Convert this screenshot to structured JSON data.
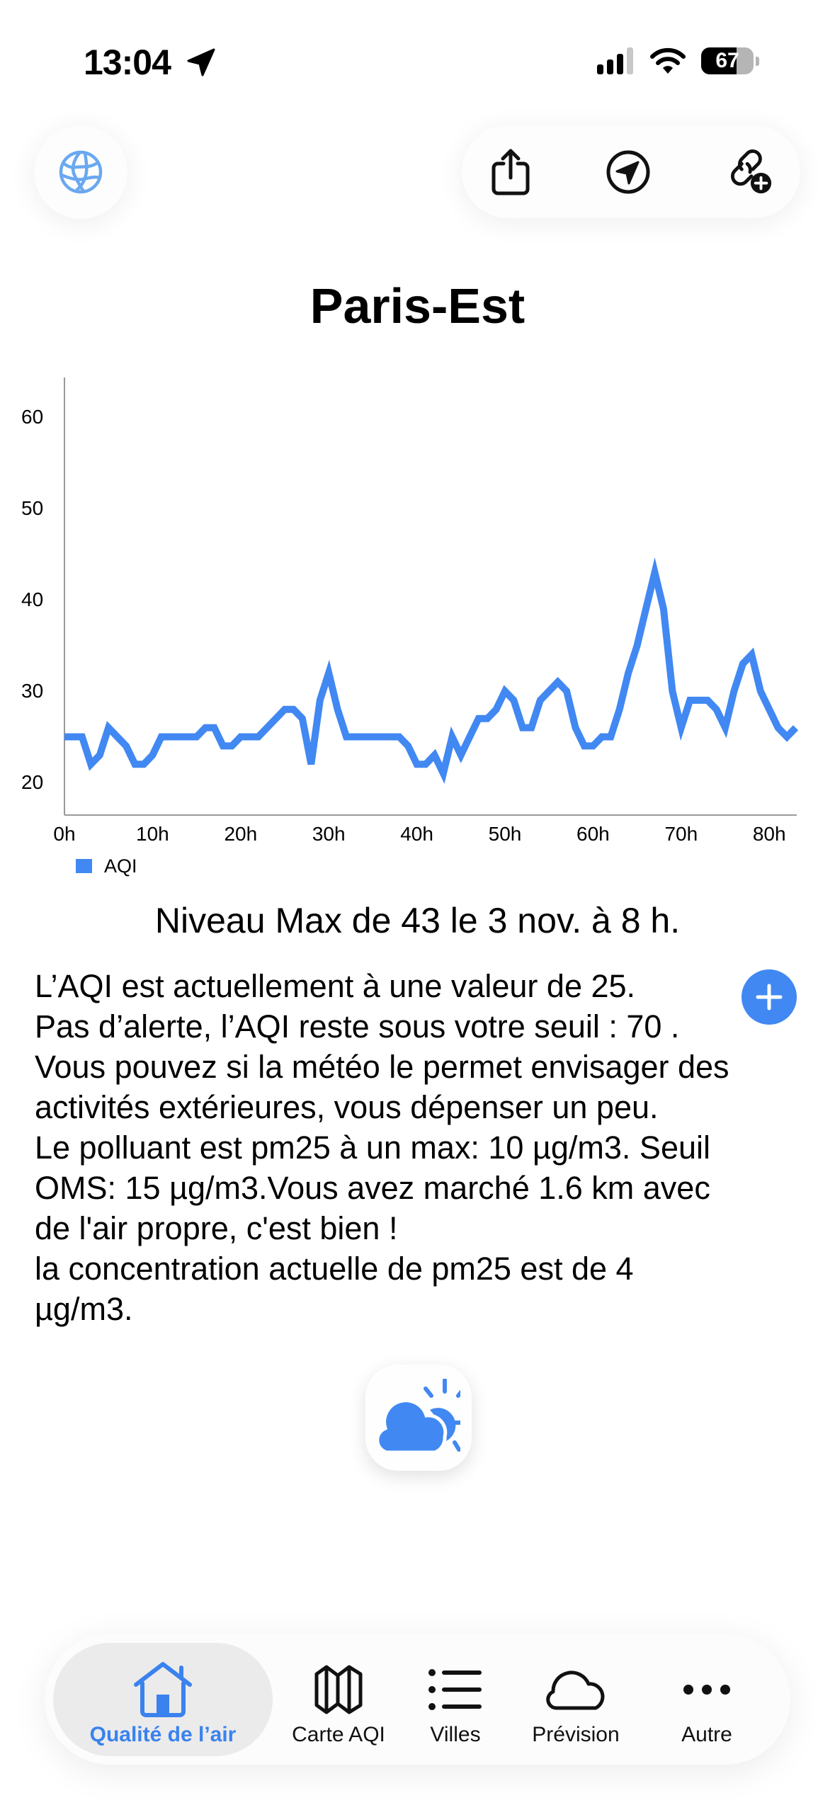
{
  "status_bar": {
    "time": "13:04",
    "battery_percent": "67",
    "icons": [
      "location-arrow-icon",
      "signal-icon",
      "wifi-icon",
      "battery-icon"
    ]
  },
  "top_bar": {
    "left_button": {
      "icon": "globe-icon"
    },
    "actions": [
      {
        "icon": "share-icon"
      },
      {
        "icon": "navigation-icon"
      },
      {
        "icon": "link-add-icon"
      }
    ]
  },
  "title": "Paris-Est",
  "colors": {
    "accent": "#4188f2",
    "text": "#000000",
    "axis": "#9a9a9a",
    "tab_selected_bg": "#ebebeb",
    "tab_selected_text": "#3a82ee"
  },
  "chart_data": {
    "type": "line",
    "title": "",
    "xlabel": "",
    "ylabel": "",
    "x_ticks": [
      "0h",
      "10h",
      "20h",
      "30h",
      "40h",
      "50h",
      "60h",
      "70h",
      "80h"
    ],
    "y_ticks": [
      "60",
      "50",
      "40",
      "30",
      "20"
    ],
    "ylim": [
      16.4,
      64.3
    ],
    "xlim": [
      0,
      83
    ],
    "grid": false,
    "legend_position": "bottom-left",
    "series": [
      {
        "name": "AQI",
        "color": "#4188f2",
        "x": [
          0,
          1,
          2,
          3,
          4,
          5,
          6,
          7,
          8,
          9,
          10,
          11,
          12,
          13,
          14,
          15,
          16,
          17,
          18,
          19,
          20,
          21,
          22,
          23,
          24,
          25,
          26,
          27,
          28,
          29,
          30,
          31,
          32,
          33,
          34,
          35,
          36,
          37,
          38,
          39,
          40,
          41,
          42,
          43,
          44,
          45,
          46,
          47,
          48,
          49,
          50,
          51,
          52,
          53,
          54,
          55,
          56,
          57,
          58,
          59,
          60,
          61,
          62,
          63,
          64,
          65,
          66,
          67,
          68,
          69,
          70,
          71,
          72,
          73,
          74,
          75,
          76,
          77,
          78,
          79,
          80,
          81,
          82,
          83
        ],
        "values": [
          25,
          25,
          25,
          22,
          23,
          26,
          25,
          24,
          22,
          22,
          23,
          25,
          25,
          25,
          25,
          25,
          26,
          26,
          24,
          24,
          25,
          25,
          25,
          26,
          27,
          28,
          28,
          27,
          22,
          29,
          32,
          28,
          25,
          25,
          25,
          25,
          25,
          25,
          25,
          24,
          22,
          22,
          23,
          21,
          25,
          23,
          25,
          27,
          27,
          28,
          30,
          29,
          26,
          26,
          29,
          30,
          31,
          30,
          26,
          24,
          24,
          25,
          25,
          28,
          32,
          35,
          39,
          43,
          39,
          30,
          26,
          29,
          29,
          29,
          28,
          26,
          30,
          33,
          34,
          30,
          28,
          26,
          25,
          26
        ]
      }
    ]
  },
  "summary": {
    "max_line": "Niveau Max de 43  le 3 nov. à 8 h.",
    "lines": [
      "L’AQI est actuellement à une valeur de 25.",
      "Pas d’alerte, l’AQI reste sous votre seuil : 70 .",
      "Vous pouvez si la météo le permet envisager des",
      "activités extérieures, vous dépenser un peu.",
      "Le polluant  est pm25 à un max: 10 µg/m3. Seuil",
      "OMS: 15 µg/m3.Vous avez marché  1.6 km avec",
      "de l'air propre, c'est bien !",
      "la concentration actuelle de pm25 est de 4",
      "µg/m3."
    ],
    "plus_button_icon": "plus-icon"
  },
  "weather_button": {
    "icon": "cloud-sun-icon"
  },
  "tab_bar": {
    "selected": 0,
    "tabs": [
      {
        "label": "Qualité de l’air",
        "icon": "house-icon"
      },
      {
        "label": "Carte AQI",
        "icon": "map-icon"
      },
      {
        "label": "Villes",
        "icon": "list-icon"
      },
      {
        "label": "Prévision",
        "icon": "cloud-icon"
      },
      {
        "label": "Autre",
        "icon": "more-icon"
      }
    ]
  }
}
